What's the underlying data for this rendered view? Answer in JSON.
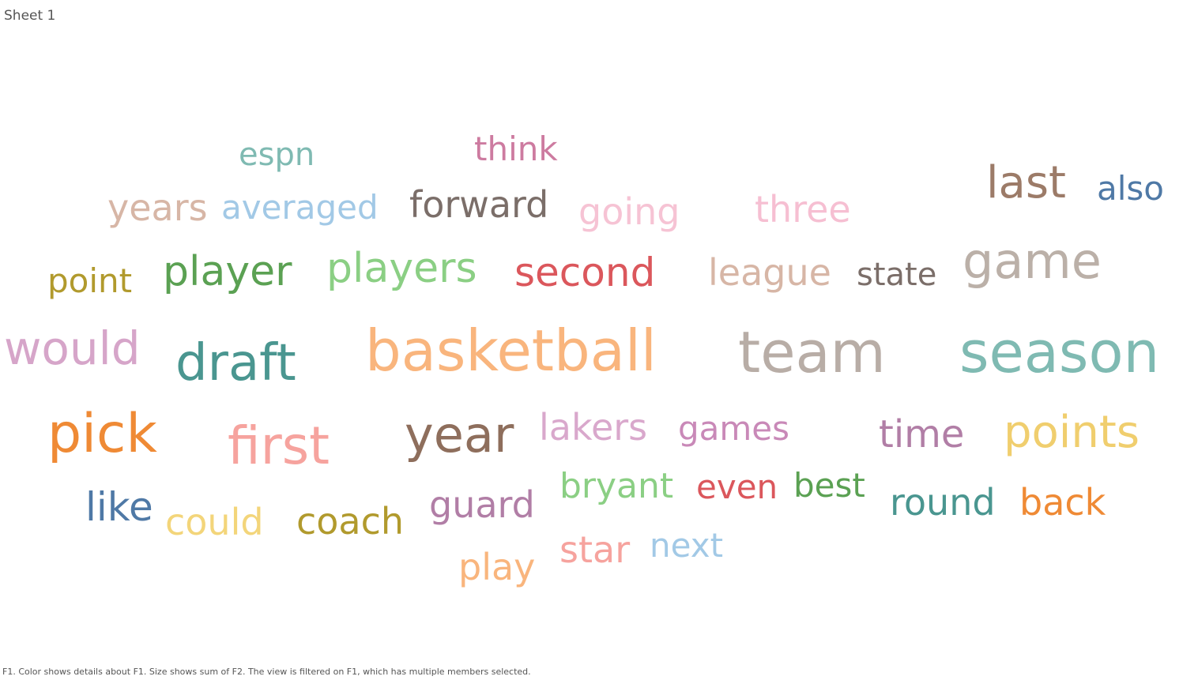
{
  "sheet": {
    "title": "Sheet 1"
  },
  "caption": "F1.  Color shows details about F1.  Size shows sum of F2. The view is filtered on F1, which has multiple members selected.",
  "chart_data": {
    "type": "word-cloud",
    "color_field": "F1",
    "size_field": "F2",
    "words": [
      {
        "text": "basketball",
        "color": "#f9b57d"
      },
      {
        "text": "team",
        "color": "#b8ada6"
      },
      {
        "text": "season",
        "color": "#7fbab2"
      },
      {
        "text": "draft",
        "color": "#4a9690"
      },
      {
        "text": "would",
        "color": "#d6a5c9"
      },
      {
        "text": "pick",
        "color": "#ef8a35"
      },
      {
        "text": "first",
        "color": "#f6a39e"
      },
      {
        "text": "year",
        "color": "#8e6e5c"
      },
      {
        "text": "game",
        "color": "#bbb0a8"
      },
      {
        "text": "points",
        "color": "#f0ce6e"
      },
      {
        "text": "player",
        "color": "#5ba153"
      },
      {
        "text": "players",
        "color": "#8bcf84"
      },
      {
        "text": "second",
        "color": "#db575c"
      },
      {
        "text": "time",
        "color": "#b17ea6"
      },
      {
        "text": "last",
        "color": "#9c7b68"
      },
      {
        "text": "lakers",
        "color": "#d9a8cc"
      },
      {
        "text": "games",
        "color": "#c989b8"
      },
      {
        "text": "league",
        "color": "#d7b6a6"
      },
      {
        "text": "three",
        "color": "#f6bfd2"
      },
      {
        "text": "going",
        "color": "#f6c3d4"
      },
      {
        "text": "forward",
        "color": "#7b6e69"
      },
      {
        "text": "coach",
        "color": "#b19a2d"
      },
      {
        "text": "round",
        "color": "#4a9690"
      },
      {
        "text": "back",
        "color": "#ef8a35"
      },
      {
        "text": "guard",
        "color": "#b17ea6"
      },
      {
        "text": "could",
        "color": "#f3d57a"
      },
      {
        "text": "bryant",
        "color": "#8bcf84"
      },
      {
        "text": "years",
        "color": "#d7b6a6"
      },
      {
        "text": "averaged",
        "color": "#a2c9e6"
      },
      {
        "text": "state",
        "color": "#7b6e69"
      },
      {
        "text": "point",
        "color": "#b19a2d"
      },
      {
        "text": "like",
        "color": "#4f79a6"
      },
      {
        "text": "even",
        "color": "#db575c"
      },
      {
        "text": "best",
        "color": "#5ba153"
      },
      {
        "text": "also",
        "color": "#4f79a6"
      },
      {
        "text": "star",
        "color": "#f6a39e"
      },
      {
        "text": "play",
        "color": "#f9b57d"
      },
      {
        "text": "next",
        "color": "#a2c9e6"
      },
      {
        "text": "espn",
        "color": "#7fbab2"
      },
      {
        "text": "think",
        "color": "#cd7ba0"
      }
    ]
  }
}
